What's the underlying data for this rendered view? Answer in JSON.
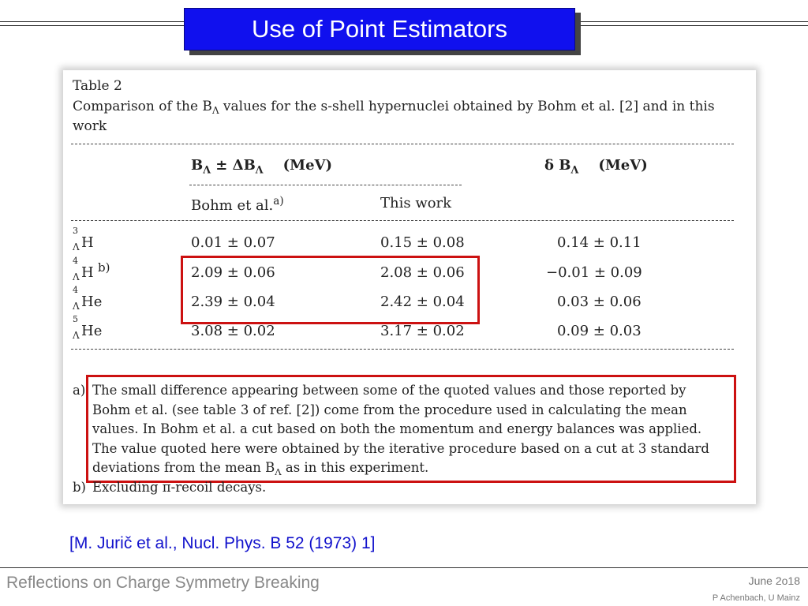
{
  "slide": {
    "title": "Use of Point Estimators",
    "reference": "[M. Jurič et al., Nucl. Phys. B 52 (1973) 1]",
    "footer_title": "Reflections on Charge Symmetry Breaking",
    "footer_date": "June 2o18",
    "footer_author": "P Achenbach, U Mainz"
  },
  "table": {
    "label": "Table 2",
    "caption_line1": "Comparison of the B",
    "caption_line1_sub": "Λ",
    "caption_line1_rest": " values for the s-shell hypernuclei obtained by Bohm et al. [2] and in this",
    "caption_line2": "work",
    "header_group": {
      "b": "B",
      "sub": "Λ",
      "pm": " ± ΔB",
      "sub2": "Λ",
      "unit": "    (MeV)"
    },
    "header_delta": {
      "d": "δ B",
      "sub": "Λ",
      "unit": "    (MeV)"
    },
    "col_bohm": "Bohm et al.",
    "col_bohm_mark": "a)",
    "col_this": "This work",
    "rows": [
      {
        "a": "3",
        "sym": "H",
        "mark": "",
        "bohm": "0.01 ± 0.07",
        "this": "0.15 ± 0.08",
        "delta": "0.14 ± 0.11"
      },
      {
        "a": "4",
        "sym": "H",
        "mark": "b)",
        "bohm": "2.09 ± 0.06",
        "this": "2.08 ± 0.06",
        "delta": "−0.01 ± 0.09"
      },
      {
        "a": "4",
        "sym": "He",
        "mark": "",
        "bohm": "2.39 ± 0.04",
        "this": "2.42 ± 0.04",
        "delta": "0.03 ± 0.06"
      },
      {
        "a": "5",
        "sym": "He",
        "mark": "",
        "bohm": "3.08 ± 0.02",
        "this": "3.17 ± 0.02",
        "delta": "0.09 ± 0.03"
      }
    ],
    "lambda": "Λ",
    "footnote_a_label": "a)",
    "footnote_a_lines": [
      "The small difference appearing between some of the quoted values and those reported by",
      "Bohm et al. (see table 3 of ref. [2]) come from the procedure used in calculating the mean",
      "values. In Bohm et al. a cut based on both the momentum and energy balances was applied.",
      "The value quoted here were obtained by the iterative procedure based on a cut at 3 standard"
    ],
    "footnote_a_last": "deviations from the mean B",
    "footnote_a_last_sub": "Λ",
    "footnote_a_last_rest": " as in this experiment.",
    "footnote_b_label": "b)",
    "footnote_b_text": "Excluding π-recoil decays."
  },
  "colors": {
    "title_bg": "#1010ee",
    "highlight": "#cc1111",
    "reference": "#1212cc"
  }
}
